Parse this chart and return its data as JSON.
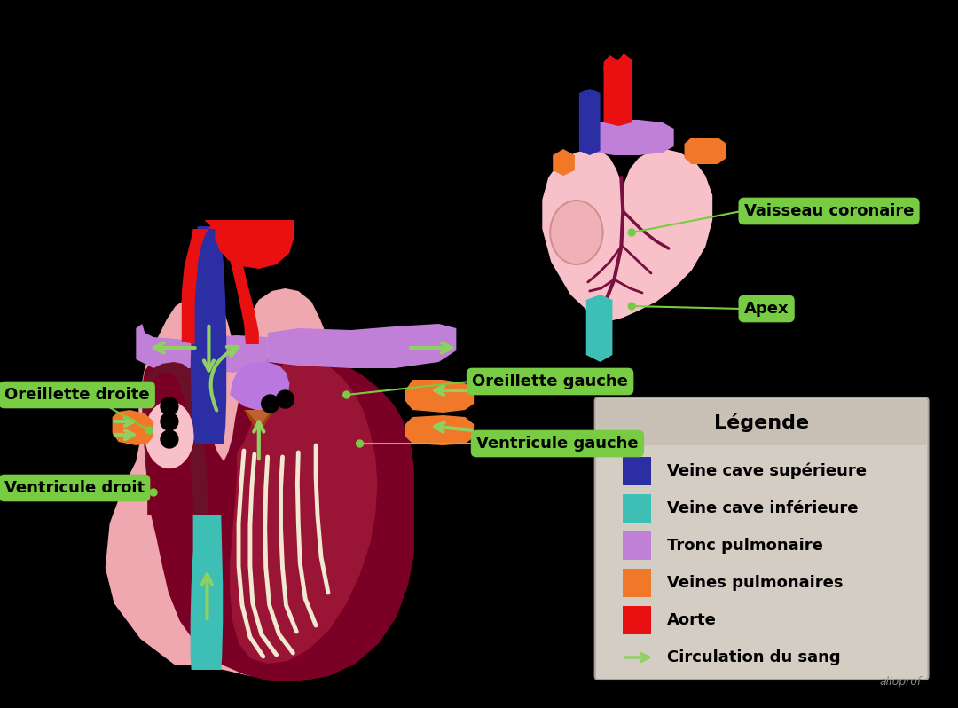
{
  "bg_color": "#000000",
  "legend_bg": "#d4cdc4",
  "legend_title_bg": "#c8c0b5",
  "legend_items": [
    {
      "color": "#2b2fa3",
      "label": "Veine cave supérieure"
    },
    {
      "color": "#3dbfb5",
      "label": "Veine cave inférieure"
    },
    {
      "color": "#c080d8",
      "label": "Tronc pulmonaire"
    },
    {
      "color": "#f07828",
      "label": "Veines pulmonaires"
    },
    {
      "color": "#e81010",
      "label": "Aorte"
    },
    {
      "color": "#90d060",
      "label": "Circulation du sang"
    }
  ],
  "legend_title": "Légende",
  "label_bg": "#78cc44",
  "label_text_color": "#000000",
  "arrow_color": "#90d060",
  "c_blue": "#2b2fa3",
  "c_teal": "#3dbfb5",
  "c_purple": "#c080d8",
  "c_orange": "#f07828",
  "c_red": "#e81010",
  "c_darkred": "#7a0025",
  "c_pink": "#f0a8b0",
  "c_pink2": "#f8c0c8",
  "c_brown": "#a04010",
  "c_black": "#000000",
  "c_green": "#90d060",
  "c_cream": "#f0e8d0"
}
